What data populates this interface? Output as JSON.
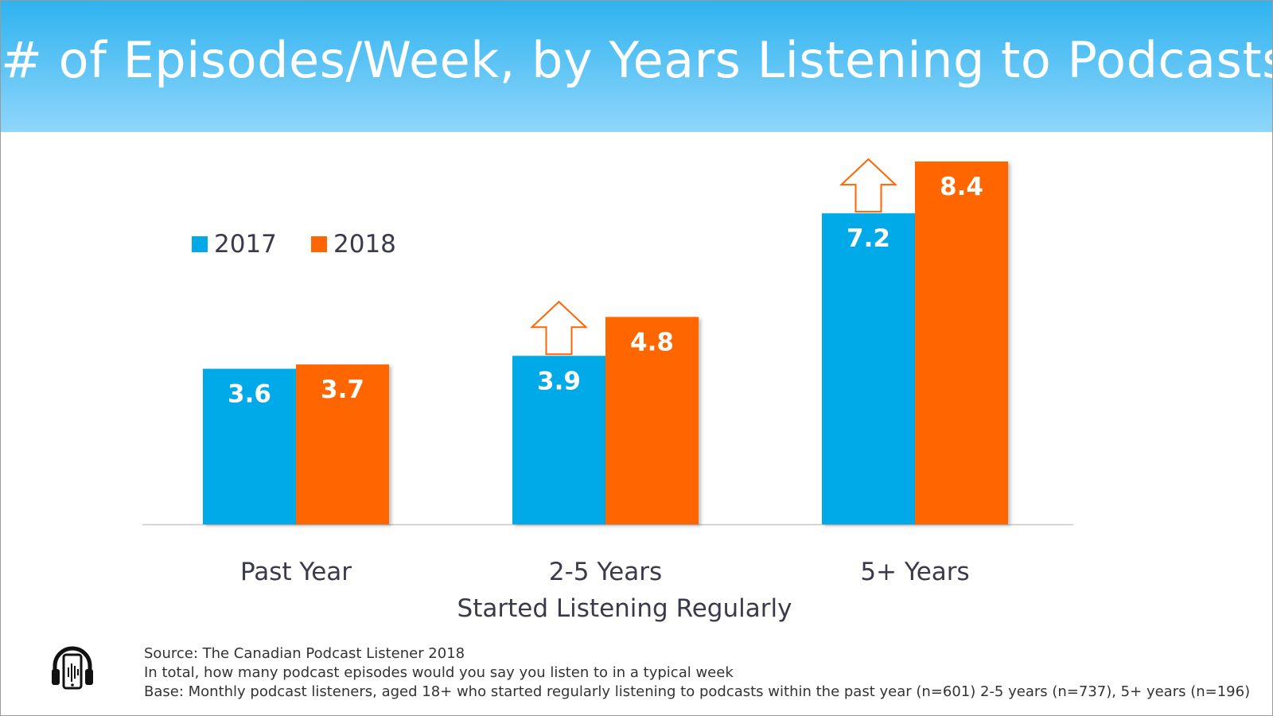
{
  "title": "# of Episodes/Week, by Years Listening to Podcasts",
  "chart_data": {
    "type": "bar",
    "categories": [
      "Past Year",
      "2-5 Years",
      "5+ Years"
    ],
    "series": [
      {
        "name": "2017",
        "values": [
          3.6,
          3.9,
          7.2
        ],
        "color": "#00a9e8"
      },
      {
        "name": "2018",
        "values": [
          3.7,
          4.8,
          8.4
        ],
        "color": "#ff6600"
      }
    ],
    "xlabel": "Started Listening Regularly",
    "ylabel": "",
    "ylim": [
      0,
      8.4
    ],
    "grid": false,
    "legend": "top-left",
    "annotations": [
      {
        "type": "up-arrow",
        "category": "2-5 Years",
        "series": "2017"
      },
      {
        "type": "up-arrow",
        "category": "5+ Years",
        "series": "2017"
      }
    ]
  },
  "footer": {
    "source": "Source:  The Canadian Podcast Listener 2018",
    "question": "In total, how many podcast episodes would you say you listen to in a typical week",
    "base": "Base: Monthly podcast listeners, aged 18+ who started regularly listening to podcasts within the past year (n=601) 2-5 years (n=737), 5+ years (n=196)",
    "logo_icon": "headphones-phone-icon"
  }
}
